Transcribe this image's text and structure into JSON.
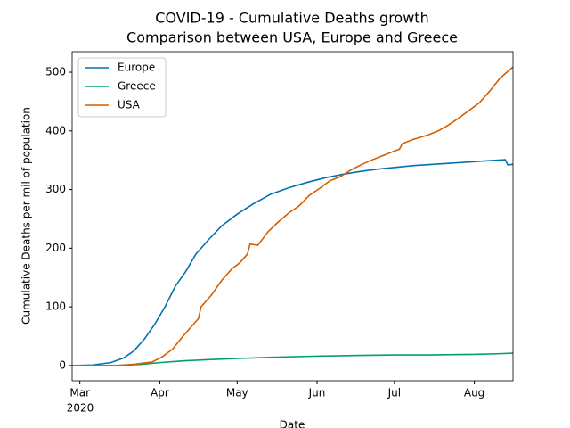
{
  "chart_data": {
    "type": "line",
    "title": "COVID-19 - Cumulative Deaths growth",
    "subtitle": "Comparison between USA, Europe and Greece",
    "x_label": "Date",
    "y_label": "Cumulative Deaths per mil of population",
    "x_year_label": "2020",
    "xlim": [
      "2020-02-27",
      "2020-08-16"
    ],
    "xticks": [
      {
        "value": "2020-03-01",
        "label": "Mar"
      },
      {
        "value": "2020-04-01",
        "label": "Apr"
      },
      {
        "value": "2020-05-01",
        "label": "May"
      },
      {
        "value": "2020-06-01",
        "label": "Jun"
      },
      {
        "value": "2020-07-01",
        "label": "Jul"
      },
      {
        "value": "2020-08-01",
        "label": "Aug"
      }
    ],
    "ylim": [
      -26,
      535
    ],
    "yticks": [
      0,
      100,
      200,
      300,
      400,
      500
    ],
    "grid": false,
    "legend": "upper-left",
    "series": [
      {
        "name": "Europe",
        "color": "#0072b2",
        "x": [
          "2020-02-27",
          "2020-03-06",
          "2020-03-13",
          "2020-03-18",
          "2020-03-22",
          "2020-03-26",
          "2020-03-30",
          "2020-04-03",
          "2020-04-07",
          "2020-04-11",
          "2020-04-15",
          "2020-04-20",
          "2020-04-25",
          "2020-05-01",
          "2020-05-07",
          "2020-05-14",
          "2020-05-21",
          "2020-05-28",
          "2020-06-04",
          "2020-06-11",
          "2020-06-18",
          "2020-06-25",
          "2020-07-02",
          "2020-07-09",
          "2020-07-16",
          "2020-07-23",
          "2020-07-30",
          "2020-08-06",
          "2020-08-13",
          "2020-08-14",
          "2020-08-16"
        ],
        "values": [
          0,
          1,
          5,
          13,
          25,
          45,
          70,
          100,
          135,
          160,
          190,
          215,
          238,
          258,
          275,
          292,
          303,
          312,
          320,
          326,
          331,
          335,
          338,
          341,
          343,
          345,
          347,
          349,
          351,
          342,
          343
        ]
      },
      {
        "name": "Greece",
        "color": "#009e73",
        "x": [
          "2020-02-27",
          "2020-03-15",
          "2020-03-25",
          "2020-04-01",
          "2020-04-10",
          "2020-04-20",
          "2020-05-01",
          "2020-05-15",
          "2020-06-01",
          "2020-06-15",
          "2020-07-01",
          "2020-07-15",
          "2020-08-01",
          "2020-08-10",
          "2020-08-16"
        ],
        "values": [
          0,
          0,
          2,
          5,
          8,
          10,
          12,
          14,
          16,
          17,
          18,
          18,
          19,
          20,
          21
        ]
      },
      {
        "name": "USA",
        "color": "#d55e00",
        "x": [
          "2020-02-27",
          "2020-03-15",
          "2020-03-22",
          "2020-03-29",
          "2020-04-02",
          "2020-04-06",
          "2020-04-10",
          "2020-04-14",
          "2020-04-16",
          "2020-04-17",
          "2020-04-21",
          "2020-04-25",
          "2020-04-29",
          "2020-05-02",
          "2020-05-05",
          "2020-05-06",
          "2020-05-09",
          "2020-05-13",
          "2020-05-17",
          "2020-05-21",
          "2020-05-25",
          "2020-05-29",
          "2020-06-02",
          "2020-06-06",
          "2020-06-10",
          "2020-06-14",
          "2020-06-18",
          "2020-06-22",
          "2020-06-26",
          "2020-06-30",
          "2020-07-03",
          "2020-07-04",
          "2020-07-08",
          "2020-07-14",
          "2020-07-18",
          "2020-07-22",
          "2020-07-26",
          "2020-07-30",
          "2020-08-03",
          "2020-08-07",
          "2020-08-11",
          "2020-08-16"
        ],
        "values": [
          0,
          0,
          2,
          6,
          15,
          28,
          50,
          70,
          80,
          100,
          120,
          145,
          165,
          175,
          190,
          207,
          205,
          228,
          245,
          260,
          272,
          290,
          302,
          315,
          322,
          333,
          342,
          350,
          357,
          364,
          369,
          378,
          385,
          393,
          400,
          410,
          422,
          435,
          448,
          468,
          490,
          509
        ]
      }
    ]
  }
}
